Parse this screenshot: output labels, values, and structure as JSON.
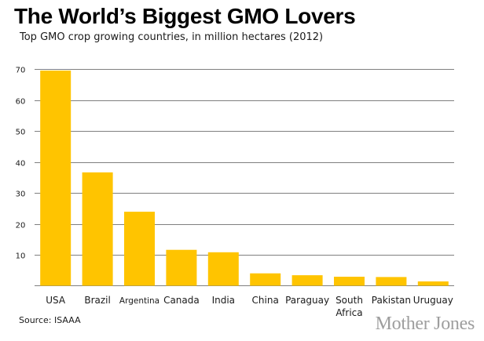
{
  "chart_data": {
    "type": "bar",
    "title": "The World’s Biggest GMO Lovers",
    "subtitle": "Top GMO crop growing countries, in million hectares (2012)",
    "categories": [
      [
        "USA"
      ],
      [
        "Brazil"
      ],
      [
        "Argentina"
      ],
      [
        "Canada"
      ],
      [
        "India"
      ],
      [
        "China"
      ],
      [
        "Paraguay"
      ],
      [
        "South",
        "Africa"
      ],
      [
        "Pakistan"
      ],
      [
        "Uruguay"
      ]
    ],
    "values": [
      69.5,
      36.6,
      23.9,
      11.6,
      10.8,
      4.0,
      3.4,
      2.9,
      2.8,
      1.4
    ],
    "ylim": [
      0,
      70
    ],
    "yticks": [
      10,
      20,
      30,
      40,
      50,
      60,
      70
    ],
    "ytick_labels": [
      "10",
      "20",
      "30",
      "40",
      "50",
      "60",
      "70"
    ],
    "grid": true,
    "bar_color": "#FFC400",
    "grid_color": "#555555"
  },
  "source": "Source: ISAAA",
  "brand": "Mother Jones"
}
